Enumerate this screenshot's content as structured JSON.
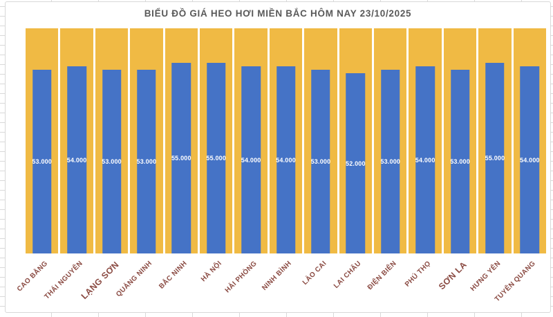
{
  "chart_data": {
    "type": "bar",
    "title": "BIỂU ĐỒ GIÁ HEO HƠI MIỀN BẮC HÔM NAY 23/10/2025",
    "categories": [
      "CAO BẰNG",
      "THÁI NGUYÊN",
      "LẠNG SƠN",
      "QUẢNG NINH",
      "BẮC NINH",
      "HÀ NỘI",
      "HẢI PHÒNG",
      "NINH BÌNH",
      "LÀO CAI",
      "LAI CHÂU",
      "ĐIỆN BIÊN",
      "PHÚ THỌ",
      "SƠN LA",
      "HƯNG YÊN",
      "TUYÊN QUANG"
    ],
    "values": [
      53000,
      54000,
      53000,
      53000,
      55000,
      55000,
      54000,
      54000,
      53000,
      52000,
      53000,
      54000,
      53000,
      55000,
      54000
    ],
    "value_labels": [
      "53.000",
      "54.000",
      "53.000",
      "53.000",
      "55.000",
      "55.000",
      "54.000",
      "54.000",
      "53.000",
      "52.000",
      "53.000",
      "54.000",
      "53.000",
      "55.000",
      "54.000"
    ],
    "xlabel": "",
    "ylabel": "",
    "ylim": [
      0,
      65000
    ],
    "grid": false,
    "legend": "none",
    "value_label_position": "center-inside",
    "category_label_rotation_deg": -45,
    "emphasized_categories": [
      "LẠNG SƠN",
      "SƠN LA"
    ],
    "colors": {
      "bar": "#4573c6",
      "track": "#f0ba44",
      "title_text": "#595959",
      "value_label_text": "#ffffff",
      "category_label_text": "#8a4a42",
      "sheet_gridline": "#d9d9d9",
      "chart_background": "#ffffff"
    }
  }
}
